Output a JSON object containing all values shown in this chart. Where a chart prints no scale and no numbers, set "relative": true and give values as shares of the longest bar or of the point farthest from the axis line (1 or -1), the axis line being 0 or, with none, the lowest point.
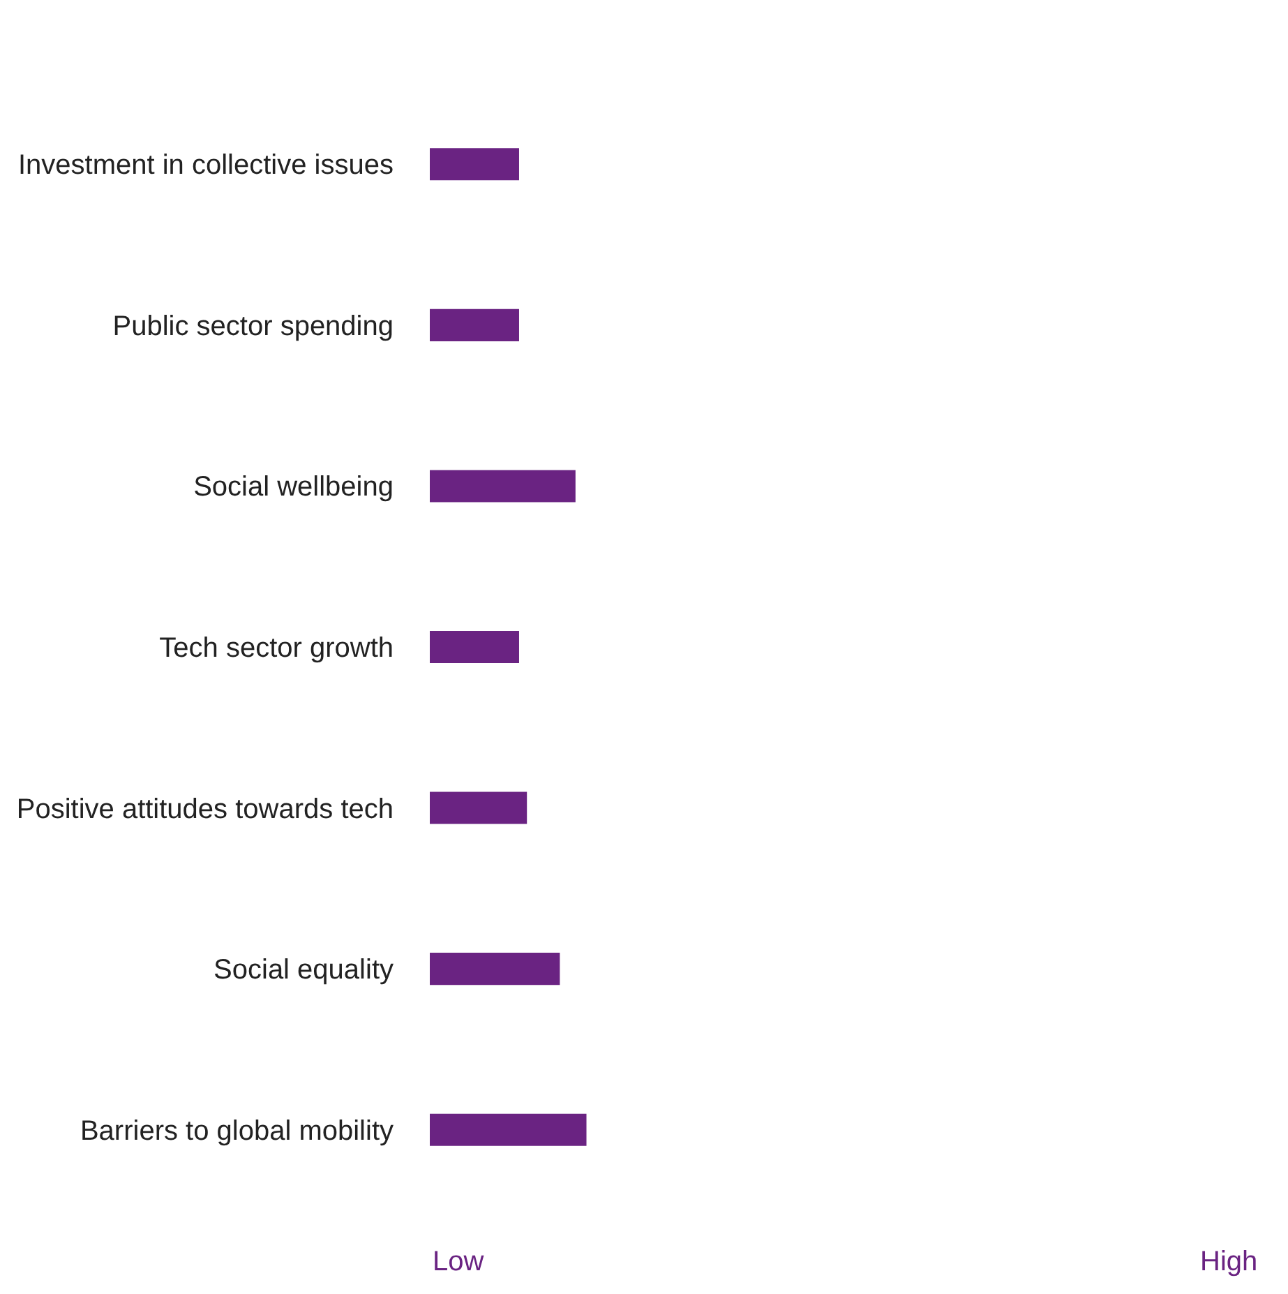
{
  "chart_data": {
    "type": "bar",
    "orientation": "horizontal",
    "relative": true,
    "categories": [
      "Investment in collective issues",
      "Public sector spending",
      "Social wellbeing",
      "Tech sector growth",
      "Positive attitudes towards tech",
      "Social equality",
      "Barriers to global mobility"
    ],
    "values": [
      0.57,
      0.57,
      0.93,
      0.57,
      0.62,
      0.83,
      1
    ],
    "color": "#6a2382",
    "annotations": [
      "Low",
      "High"
    ]
  }
}
